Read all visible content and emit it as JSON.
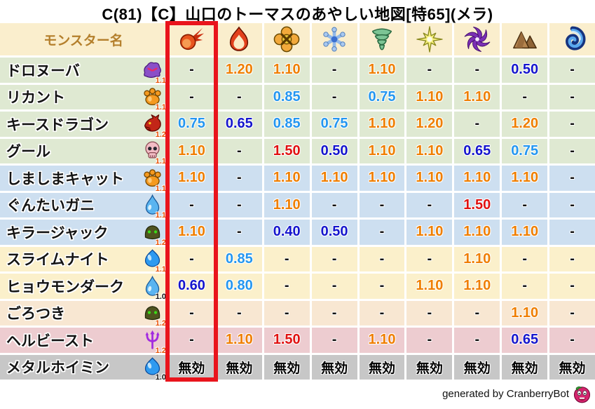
{
  "title": "C(81)【C】山口のトーマスのあやしい地図[特65](メラ)",
  "chart_data": {
    "type": "table",
    "title": "C(81)【C】山口のトーマスのあやしい地図[特65](メラ)",
    "name_column_label": "モンスター名",
    "columns_icons": [
      "fireball-icon",
      "flame-icon",
      "burst-icon",
      "snowflake-icon",
      "tornado-icon",
      "spark-icon",
      "pinwheel-icon",
      "mountain-icon",
      "wave-icon"
    ],
    "rows": [
      {
        "name": "ドロヌーバ",
        "icon": "purple-blob-icon",
        "rank": "1.1",
        "group": "green",
        "values": [
          "-",
          "1.20",
          "1.10",
          "-",
          "1.10",
          "-",
          "-",
          "0.50",
          "-"
        ]
      },
      {
        "name": "リカント",
        "icon": "paw-icon",
        "rank": "1.1",
        "group": "green",
        "values": [
          "-",
          "-",
          "0.85",
          "-",
          "0.75",
          "1.10",
          "1.10",
          "-",
          "-"
        ]
      },
      {
        "name": "キースドラゴン",
        "icon": "dragon-icon",
        "rank": "1.2",
        "group": "green",
        "values": [
          "0.75",
          "0.65",
          "0.85",
          "0.75",
          "1.10",
          "1.20",
          "-",
          "1.20",
          "-"
        ]
      },
      {
        "name": "グール",
        "icon": "skull-icon",
        "rank": "1.1",
        "group": "green",
        "values": [
          "1.10",
          "-",
          "1.50",
          "0.50",
          "1.10",
          "1.10",
          "0.65",
          "0.75",
          "-"
        ]
      },
      {
        "name": "しましまキャット",
        "icon": "paw-icon",
        "rank": "1.1",
        "group": "blue",
        "values": [
          "1.10",
          "-",
          "1.10",
          "1.10",
          "1.10",
          "1.10",
          "1.10",
          "1.10",
          "-"
        ]
      },
      {
        "name": "ぐんたいガニ",
        "icon": "droplet-icon",
        "rank": "1.1",
        "group": "blue",
        "values": [
          "-",
          "-",
          "1.10",
          "-",
          "-",
          "-",
          "1.50",
          "-",
          "-"
        ]
      },
      {
        "name": "キラージャック",
        "icon": "helmet-icon",
        "rank": "1.2",
        "group": "blue",
        "values": [
          "1.10",
          "-",
          "0.40",
          "0.50",
          "-",
          "1.10",
          "1.10",
          "1.10",
          "-"
        ]
      },
      {
        "name": "スライムナイト",
        "icon": "slime-icon",
        "rank": "1.1",
        "group": "cream",
        "values": [
          "-",
          "0.85",
          "-",
          "-",
          "-",
          "-",
          "1.10",
          "-",
          "-"
        ]
      },
      {
        "name": "ヒョウモンダーク",
        "icon": "droplet-icon",
        "rank": "1.0",
        "group": "cream",
        "values": [
          "0.60",
          "0.80",
          "-",
          "-",
          "-",
          "1.10",
          "1.10",
          "-",
          "-"
        ]
      },
      {
        "name": "ごろつき",
        "icon": "helmet-icon",
        "rank": "1.2",
        "group": "peach",
        "values": [
          "-",
          "-",
          "-",
          "-",
          "-",
          "-",
          "-",
          "1.10",
          "-"
        ]
      },
      {
        "name": "ヘルビースト",
        "icon": "trident-icon",
        "rank": "1.2",
        "group": "pink",
        "values": [
          "-",
          "1.10",
          "1.50",
          "-",
          "1.10",
          "-",
          "-",
          "0.65",
          "-"
        ]
      },
      {
        "name": "メタルホイミン",
        "icon": "slime-icon",
        "rank": "1.0",
        "group": "gray",
        "values": [
          "無効",
          "無効",
          "無効",
          "無効",
          "無効",
          "無効",
          "無効",
          "無効",
          "無効"
        ]
      }
    ],
    "highlight": {
      "column_icon": "fireball-icon",
      "column_index": 0,
      "border_color": "#e9141c"
    }
  },
  "palette": {
    "header": "#faeecd",
    "green": "#dfe9d2",
    "blue": "#cddff0",
    "cream": "#fbf0cb",
    "peach": "#f8e7d2",
    "pink": "#edccd0",
    "gray": "#c7c7c7",
    "value_orange": "#ef7e00",
    "value_blue": "#2496f0",
    "value_navy": "#1515cd",
    "value_red": "#e01111"
  },
  "footer": {
    "credit": "generated by CranberryBot",
    "bot_icon": "cranberry-bot-icon"
  }
}
